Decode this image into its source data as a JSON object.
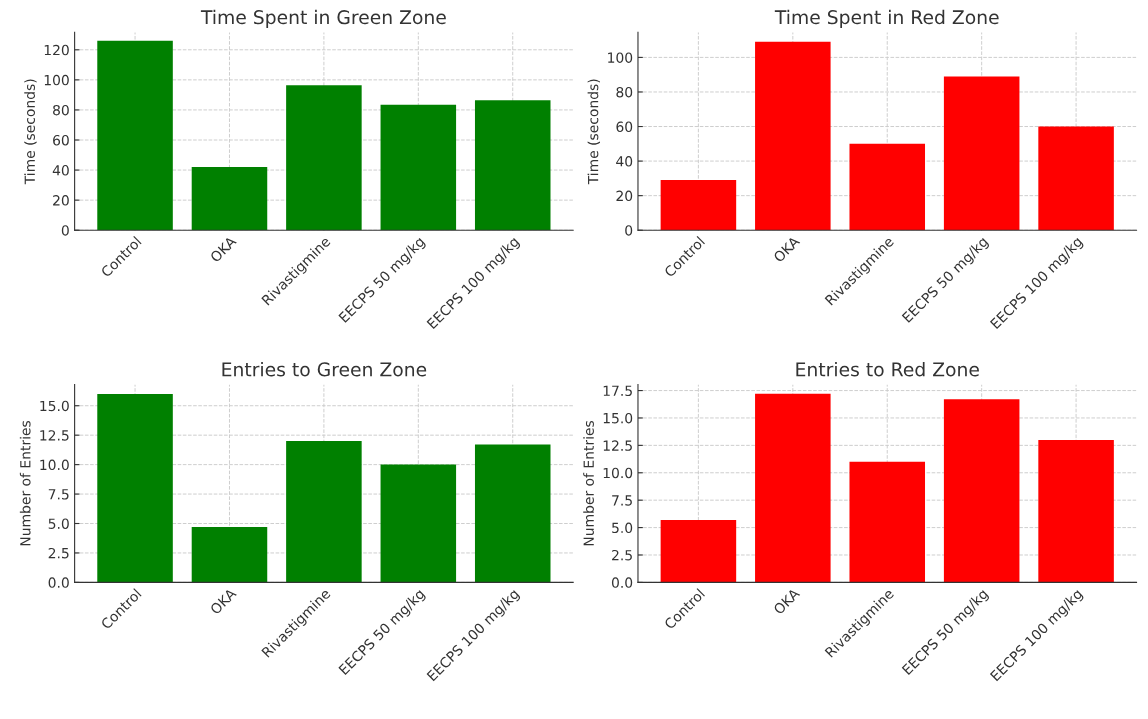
{
  "chart_data": [
    {
      "type": "bar",
      "title": "Time Spent in Green Zone",
      "ylabel": "Time (seconds)",
      "categories": [
        "Control",
        "OKA",
        "Rivastigmine",
        "EECPS 50 mg/kg",
        "EECPS 100 mg/kg"
      ],
      "values": [
        126,
        42,
        96.5,
        83.5,
        86.5
      ],
      "color": "#008000",
      "ylim": [
        0,
        131.6
      ],
      "yticks": [
        0,
        20,
        40,
        60,
        80,
        100,
        120
      ],
      "grid": true
    },
    {
      "type": "bar",
      "title": "Time Spent in Red Zone",
      "ylabel": "Time (seconds)",
      "categories": [
        "Control",
        "OKA",
        "Rivastigmine",
        "EECPS 50 mg/kg",
        "EECPS 100 mg/kg"
      ],
      "values": [
        29,
        109,
        50,
        89,
        60
      ],
      "color": "#ff0000",
      "ylim": [
        0,
        114.5
      ],
      "yticks": [
        0,
        20,
        40,
        60,
        80,
        100
      ],
      "grid": true
    },
    {
      "type": "bar",
      "title": "Entries to Green Zone",
      "ylabel": "Number of Entries",
      "categories": [
        "Control",
        "OKA",
        "Rivastigmine",
        "EECPS 50 mg/kg",
        "EECPS 100 mg/kg"
      ],
      "values": [
        16,
        4.7,
        12,
        10,
        11.7
      ],
      "color": "#008000",
      "ylim": [
        0,
        16.8
      ],
      "yticks": [
        {
          "value": 0,
          "label": "0.0"
        },
        2.5,
        {
          "value": 5,
          "label": "5.0"
        },
        7.5,
        {
          "value": 10,
          "label": "10.0"
        },
        12.5,
        {
          "value": 15,
          "label": "15.0"
        }
      ],
      "grid": true
    },
    {
      "type": "bar",
      "title": "Entries to Red Zone",
      "ylabel": "Number of Entries",
      "categories": [
        "Control",
        "OKA",
        "Rivastigmine",
        "EECPS 50 mg/kg",
        "EECPS 100 mg/kg"
      ],
      "values": [
        5.7,
        17.2,
        11,
        16.7,
        13
      ],
      "color": "#ff0000",
      "ylim": [
        0,
        18.05
      ],
      "yticks": [
        {
          "value": 0,
          "label": "0.0"
        },
        2.5,
        {
          "value": 5,
          "label": "5.0"
        },
        7.5,
        {
          "value": 10,
          "label": "10.0"
        },
        12.5,
        {
          "value": 15,
          "label": "15.0"
        },
        17.5
      ],
      "grid": true
    }
  ]
}
